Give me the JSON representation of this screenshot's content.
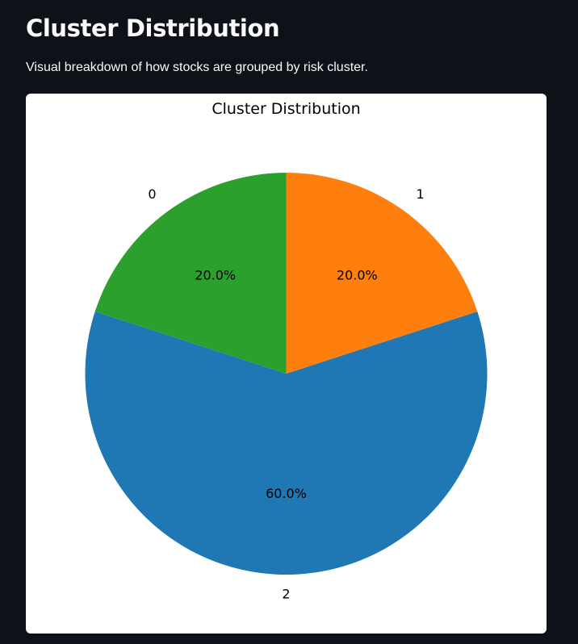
{
  "header": {
    "title": "Cluster Distribution",
    "caption": "Visual breakdown of how stocks are grouped by risk cluster."
  },
  "chart_data": {
    "type": "pie",
    "title": "Cluster Distribution",
    "start_angle_deg": 90,
    "direction": "counterclockwise",
    "slices": [
      {
        "label": "0",
        "value": 20.0,
        "pct_label": "20.0%",
        "color": "#2ca02c"
      },
      {
        "label": "2",
        "value": 60.0,
        "pct_label": "60.0%",
        "color": "#1f77b4"
      },
      {
        "label": "1",
        "value": 20.0,
        "pct_label": "20.0%",
        "color": "#ff7f0e"
      }
    ]
  }
}
